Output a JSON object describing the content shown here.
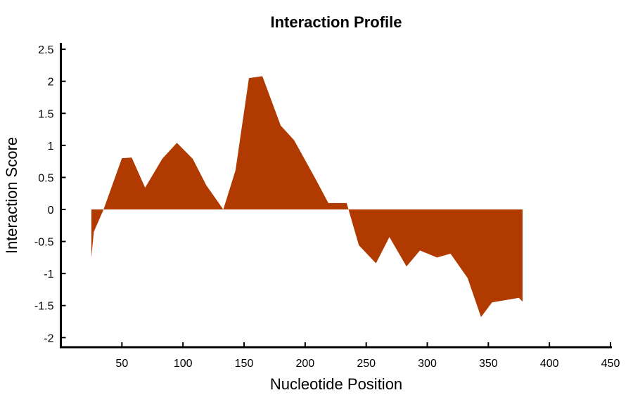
{
  "chart_data": {
    "type": "area",
    "title": "Interaction Profile",
    "xlabel": "Nucleotide Position",
    "ylabel": "Interaction Score",
    "xlim": [
      0,
      450
    ],
    "ylim": [
      -2.15,
      2.6
    ],
    "xticks": [
      50,
      100,
      150,
      200,
      250,
      300,
      350,
      400,
      450
    ],
    "yticks": [
      -2,
      -1.5,
      -1,
      -0.5,
      0,
      0.5,
      1,
      1.5,
      2,
      2.5
    ],
    "fill_color": "#b03a00",
    "grid": false,
    "series": [
      {
        "x": [
          25,
          27,
          35,
          50,
          58,
          69,
          83,
          95,
          108,
          119,
          133,
          143,
          154,
          165,
          180,
          191,
          209,
          219,
          234,
          244,
          258,
          269,
          283,
          294,
          308,
          319,
          333,
          344,
          353,
          375,
          378
        ],
        "values": [
          -0.75,
          -0.35,
          0.0,
          0.8,
          0.81,
          0.34,
          0.79,
          1.04,
          0.79,
          0.38,
          0.0,
          0.61,
          2.05,
          2.08,
          1.31,
          1.08,
          0.46,
          0.1,
          0.1,
          -0.56,
          -0.84,
          -0.43,
          -0.89,
          -0.64,
          -0.75,
          -0.69,
          -1.07,
          -1.68,
          -1.45,
          -1.38,
          -1.44
        ]
      }
    ]
  }
}
